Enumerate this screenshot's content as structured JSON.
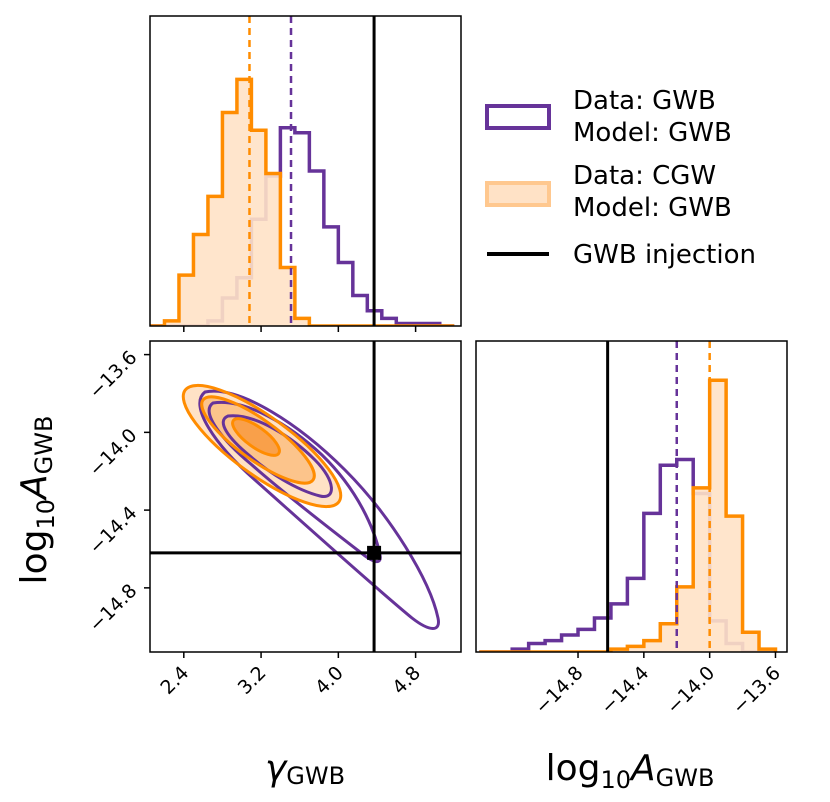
{
  "colors": {
    "gwb": "#663399",
    "cgw_edge": "#ff8c00",
    "cgw_fill": "#ffe2c6",
    "injection": "#000000"
  },
  "legend": {
    "entries": [
      {
        "line1": "Data: GWB",
        "line2": "Model: GWB",
        "style": "purple-outline"
      },
      {
        "line1": "Data: CGW",
        "line2": "Model: GWB",
        "style": "orange-filled"
      },
      {
        "line1": "GWB injection",
        "line2": "",
        "style": "black-line"
      }
    ]
  },
  "chart_data": [
    {
      "type": "histogram",
      "panel": "gamma-marginal",
      "x_range": [
        2.05,
        5.27
      ],
      "bin_edges": [
        2.05,
        2.2,
        2.35,
        2.5,
        2.65,
        2.8,
        2.95,
        3.1,
        3.25,
        3.4,
        3.55,
        3.7,
        3.85,
        4.0,
        4.15,
        4.3,
        4.45,
        4.6,
        4.75,
        4.9,
        5.05,
        5.2
      ],
      "series": [
        {
          "name": "Data: GWB Model: GWB",
          "values": [
            0,
            0,
            0,
            0,
            0.02,
            0.11,
            0.19,
            0.42,
            0.59,
            0.78,
            0.76,
            0.61,
            0.39,
            0.25,
            0.12,
            0.06,
            0.03,
            0.01,
            0.01,
            0.01,
            0
          ],
          "median": 3.51
        },
        {
          "name": "Data: CGW Model: GWB",
          "values": [
            0,
            0.02,
            0.2,
            0.36,
            0.51,
            0.84,
            0.97,
            0.77,
            0.6,
            0.23,
            0.03,
            0,
            0,
            0,
            0,
            0,
            0,
            0,
            0,
            0,
            0
          ],
          "median": 3.08
        }
      ],
      "injection": 4.37
    },
    {
      "type": "contour",
      "panel": "joint",
      "x_range": [
        2.05,
        5.27
      ],
      "y_range": [
        -15.13,
        -13.53
      ],
      "xticks": [
        "2.4",
        "3.2",
        "4.0",
        "4.8"
      ],
      "yticks": [
        "−13.6",
        "−14.0",
        "−14.4",
        "−14.8"
      ],
      "series": [
        {
          "name": "Data: GWB Model: GWB",
          "levels": 3
        },
        {
          "name": "Data: CGW Model: GWB",
          "levels": 3,
          "filled": true
        }
      ],
      "injection": {
        "x": 4.37,
        "y": -14.62
      },
      "xlabel": "γ_GWB",
      "ylabel": "log10 A_GWB"
    },
    {
      "type": "histogram",
      "panel": "logA-marginal",
      "x_range": [
        -15.42,
        -13.53
      ],
      "xticks": [
        "−14.8",
        "−14.4",
        "−14.0",
        "−13.6"
      ],
      "bin_edges": [
        -15.4,
        -15.3,
        -15.2,
        -15.1,
        -15.0,
        -14.9,
        -14.8,
        -14.7,
        -14.6,
        -14.5,
        -14.4,
        -14.3,
        -14.2,
        -14.1,
        -14.0,
        -13.9,
        -13.8,
        -13.7,
        -13.6
      ],
      "series": [
        {
          "name": "Data: GWB Model: GWB",
          "values": [
            0,
            0,
            0.01,
            0.03,
            0.04,
            0.06,
            0.08,
            0.12,
            0.17,
            0.26,
            0.49,
            0.66,
            0.68,
            0.56,
            0.11,
            0.03,
            0,
            0
          ],
          "median": -14.2
        },
        {
          "name": "Data: CGW Model: GWB",
          "values": [
            0,
            0,
            0,
            0,
            0,
            0,
            0,
            0,
            0.01,
            0.02,
            0.04,
            0.1,
            0.23,
            0.58,
            0.96,
            0.48,
            0.07,
            0.01
          ],
          "median": -14.0
        }
      ],
      "injection": -14.62,
      "xlabel": "log10 A_GWB"
    }
  ]
}
